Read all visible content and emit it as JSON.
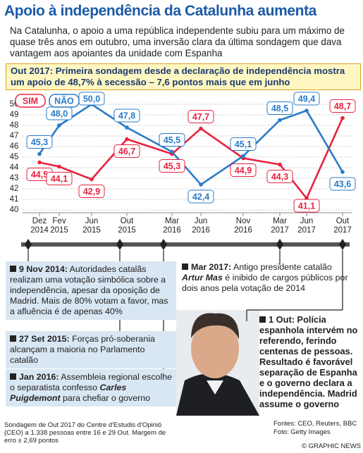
{
  "chart_data": {
    "type": "line",
    "title": "Apoio à independência da Catalunha aumenta",
    "subtitle": "Na Catalunha, o apoio a uma república independente subiu para um máximo de quase três anos em outubro, uma inversão clara da última sondagem que dava vantagem aos apoiantes da unidade com Espanha",
    "annotation": "Out 2017: Primeira sondagem desde a declaração de independência mostra um apoio de 48,7% à secessão – 7,6 pontos mais que em junho",
    "categories": [
      "Dez 2014",
      "Fev 2015",
      "Jun 2015",
      "Out 2015",
      "Mar 2016",
      "Jun 2016",
      "Nov 2016",
      "Mar 2017",
      "Jun 2017",
      "Out 2017"
    ],
    "series": [
      {
        "name": "SIM",
        "color": "#e8233f",
        "values": [
          44.5,
          44.1,
          42.9,
          46.7,
          45.3,
          47.7,
          44.9,
          44.3,
          41.1,
          48.7
        ],
        "value_labels": [
          "44,5",
          "44,1",
          "42,9",
          "46,7",
          "45,3",
          "47,7",
          "44,9",
          "44,3",
          "41,1",
          "48,7"
        ]
      },
      {
        "name": "NÃO",
        "color": "#2a7bc8",
        "values": [
          45.3,
          48.0,
          50.0,
          47.8,
          45.5,
          42.4,
          45.1,
          48.5,
          49.4,
          43.6
        ],
        "value_labels": [
          "45,3",
          "48,0",
          "50,0",
          "47,8",
          "45,5",
          "42,4",
          "45,1",
          "48,5",
          "49,4",
          "43,6"
        ]
      }
    ],
    "ylim": [
      40,
      50
    ],
    "yticks": [
      40,
      41,
      42,
      43,
      44,
      45,
      46,
      47,
      48,
      49,
      50
    ],
    "grid": true
  },
  "events": [
    {
      "date": "9 Nov 2014:",
      "text": "Autoridades catalãs realizam uma votação simbólica sobre a independência, apesar da oposição de Madrid. Mais de 80% votam a favor, mas a afluência é de apenas 40%"
    },
    {
      "date": "27 Set 2015:",
      "text": "Forças pró-soberania alcançam a maioria no Parlamento catalão"
    },
    {
      "date": "Jan 2016:",
      "text": "Assembleia regional escolhe o separatista confesso",
      "name": "Carles Puigdemont",
      "text_after": "para chefiar o governo"
    },
    {
      "date": "Mar 2017:",
      "text": "Antigo presidente catalão",
      "name": "Artur Mas",
      "text_after": "é inibido de cargos públicos por dois anos pela votação de 2014"
    },
    {
      "date": "1 Out:",
      "text": "Polícia espanhola intervém no referendo, ferindo centenas de pessoas. Resultado é favorável separação de Espanha e o governo declara a independência. Madrid assume o governo"
    }
  ],
  "footnote": "Sondagem de Out 2017 do Centre d'Estudis d'Opinió (CEO) a 1.338 pessoas entre 16 e 29 Out. Margem de erro ± 2,69 pontos",
  "sources": "Fontes: CEO, Reuters, BBC",
  "photo_credit": "Foto: Getty Images",
  "copyright": "© GRAPHIC NEWS"
}
